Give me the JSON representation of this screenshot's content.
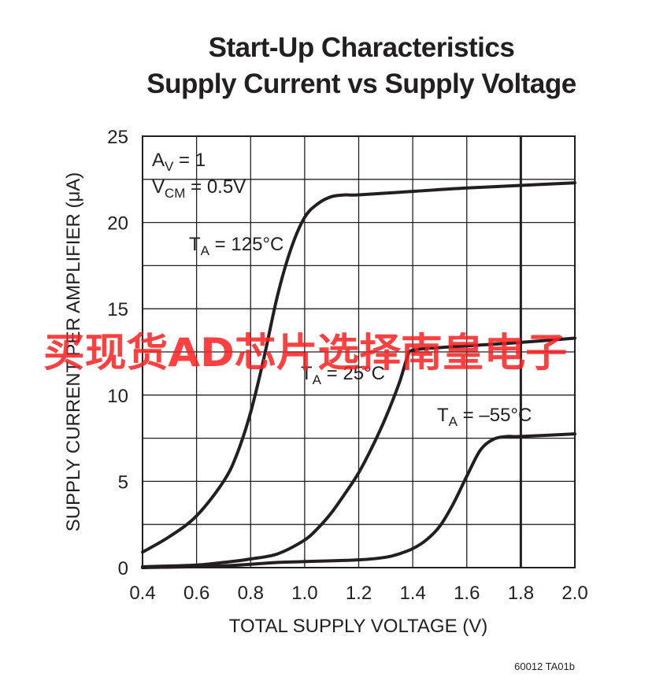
{
  "chart_data": {
    "type": "line",
    "title": "Start-Up Characteristics",
    "subtitle": "Supply Current vs Supply Voltage",
    "xlabel": "TOTAL SUPPLY VOLTAGE (V)",
    "ylabel": "SUPPLY CURRENT PER AMPLIFIER (μA)",
    "xlim": [
      0.4,
      2.0
    ],
    "ylim": [
      0,
      25
    ],
    "xticks": [
      "0.4",
      "0.6",
      "0.8",
      "1.0",
      "1.2",
      "1.4",
      "1.6",
      "1.8",
      "2.0"
    ],
    "yticks": [
      "0",
      "5",
      "10",
      "15",
      "20",
      "25"
    ],
    "grid": true,
    "conditions": {
      "line1": {
        "main": "A",
        "sub": "V",
        "rest": " = 1"
      },
      "line2": {
        "main": "V",
        "sub": "CM",
        "rest": " = 0.5V"
      }
    },
    "series": [
      {
        "name": "TA = 125°C",
        "label": {
          "main": "T",
          "sub": "A",
          "rest": " = 125°C"
        },
        "x": [
          0.4,
          0.5,
          0.6,
          0.7,
          0.75,
          0.8,
          0.85,
          0.9,
          0.95,
          1.0,
          1.05,
          1.1,
          1.15,
          1.2,
          1.4,
          1.6,
          1.8,
          2.0
        ],
        "y": [
          0.9,
          1.8,
          3.0,
          5.0,
          6.6,
          9.0,
          12.2,
          15.8,
          18.5,
          20.3,
          21.1,
          21.5,
          21.6,
          21.6,
          21.8,
          22.0,
          22.15,
          22.3
        ]
      },
      {
        "name": "TA = 25°C",
        "label": {
          "main": "T",
          "sub": "A",
          "rest": " = 25°C"
        },
        "x": [
          0.4,
          0.6,
          0.7,
          0.8,
          0.9,
          1.0,
          1.05,
          1.1,
          1.15,
          1.2,
          1.25,
          1.3,
          1.35,
          1.38,
          1.4,
          1.5,
          1.6,
          1.8,
          2.0
        ],
        "y": [
          0.05,
          0.15,
          0.3,
          0.5,
          0.8,
          1.6,
          2.3,
          3.2,
          4.3,
          5.5,
          7.0,
          8.7,
          10.7,
          12.2,
          12.6,
          12.75,
          12.85,
          13.05,
          13.3
        ]
      },
      {
        "name": "TA = –55°C",
        "label": {
          "main": "T",
          "sub": "A",
          "rest": " = –55°C"
        },
        "x": [
          0.4,
          0.7,
          0.9,
          1.0,
          1.2,
          1.3,
          1.35,
          1.4,
          1.45,
          1.5,
          1.55,
          1.6,
          1.65,
          1.7,
          1.75,
          1.8,
          2.0
        ],
        "y": [
          0.0,
          0.1,
          0.3,
          0.35,
          0.45,
          0.6,
          0.8,
          1.1,
          1.6,
          2.4,
          3.7,
          5.3,
          6.8,
          7.45,
          7.6,
          7.6,
          7.75
        ]
      }
    ],
    "figure_code": "60012 TA01b"
  },
  "watermark": "买现货AD芯片选择南皇电子",
  "colors": {
    "ink": "#231f20",
    "watermark": "#ff1f1f"
  }
}
